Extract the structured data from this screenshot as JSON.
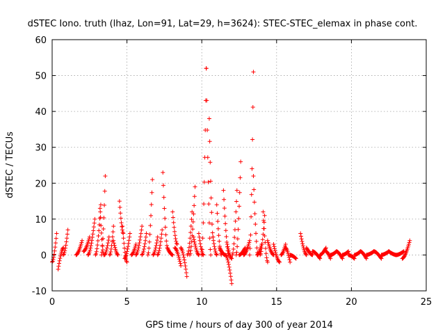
{
  "chart_data": {
    "type": "scatter",
    "title": "dSTEC Iono. truth (lhaz, Lon=91, Lat=29, h=3624): STEC-STEC_elemax in phase cont.",
    "xlabel": "GPS time / hours of day 300 of year 2014",
    "ylabel": "dSTEC  / TECUs",
    "xlim": [
      0,
      25
    ],
    "ylim": [
      -10,
      60
    ],
    "xticks": [
      0,
      5,
      10,
      15,
      20,
      25
    ],
    "yticks": [
      -10,
      0,
      10,
      20,
      30,
      40,
      50,
      60
    ],
    "xtick_labels": [
      "0",
      "5",
      "10",
      "15",
      "20",
      "25"
    ],
    "ytick_labels": [
      "-10",
      "0",
      "10",
      "20",
      "30",
      "40",
      "50",
      "60"
    ],
    "grid": true,
    "marker": "+",
    "marker_color": "#ff0000",
    "arc_sampling_hours": 0.033,
    "arcs": [
      {
        "t0": 0.0,
        "t1": 0.3,
        "y0": -2,
        "y1": 6
      },
      {
        "t0": 0.4,
        "t1": 0.75,
        "y0": -4,
        "y1": 2
      },
      {
        "t0": 0.75,
        "t1": 1.05,
        "y0": 0,
        "y1": 7
      },
      {
        "t0": 1.6,
        "t1": 2.0,
        "y0": 0,
        "y1": 4
      },
      {
        "t0": 2.1,
        "t1": 2.5,
        "y0": 1,
        "y1": 5
      },
      {
        "t0": 2.4,
        "t1": 2.85,
        "y0": 0,
        "y1": 10
      },
      {
        "t0": 2.9,
        "t1": 3.25,
        "y0": 0,
        "y1": 14
      },
      {
        "t0": 3.2,
        "t1": 3.45,
        "y0": 13,
        "y1": 0
      },
      {
        "t0": 3.3,
        "t1": 3.55,
        "y0": 0,
        "y1": 22
      },
      {
        "t0": 3.5,
        "t1": 3.8,
        "y0": 0,
        "y1": 5
      },
      {
        "t0": 3.85,
        "t1": 4.1,
        "y0": 0,
        "y1": 8
      },
      {
        "t0": 4.1,
        "t1": 4.4,
        "y0": 4,
        "y1": 0
      },
      {
        "t0": 4.5,
        "t1": 4.75,
        "y0": 15,
        "y1": 6
      },
      {
        "t0": 4.7,
        "t1": 5.0,
        "y0": 8,
        "y1": -2
      },
      {
        "t0": 4.85,
        "t1": 5.2,
        "y0": -1,
        "y1": 6
      },
      {
        "t0": 5.3,
        "t1": 5.6,
        "y0": 0,
        "y1": 3
      },
      {
        "t0": 5.6,
        "t1": 6.0,
        "y0": 0,
        "y1": 8
      },
      {
        "t0": 6.0,
        "t1": 6.3,
        "y0": 0,
        "y1": 6
      },
      {
        "t0": 6.4,
        "t1": 6.7,
        "y0": 0,
        "y1": 21
      },
      {
        "t0": 6.75,
        "t1": 7.05,
        "y0": 0,
        "y1": 5
      },
      {
        "t0": 7.05,
        "t1": 7.35,
        "y0": 0,
        "y1": 7
      },
      {
        "t0": 7.4,
        "t1": 7.7,
        "y0": 23,
        "y1": 2
      },
      {
        "t0": 7.7,
        "t1": 8.05,
        "y0": 2,
        "y1": 0
      },
      {
        "t0": 8.05,
        "t1": 8.35,
        "y0": 12,
        "y1": 3
      },
      {
        "t0": 8.2,
        "t1": 8.6,
        "y0": 2,
        "y1": -3
      },
      {
        "t0": 8.6,
        "t1": 9.0,
        "y0": 2,
        "y1": -6
      },
      {
        "t0": 9.05,
        "t1": 9.35,
        "y0": 0,
        "y1": 12
      },
      {
        "t0": 9.2,
        "t1": 9.55,
        "y0": 0,
        "y1": 19
      },
      {
        "t0": 9.45,
        "t1": 9.8,
        "y0": 5,
        "y1": 0
      },
      {
        "t0": 9.8,
        "t1": 10.1,
        "y0": 6,
        "y1": 0
      },
      {
        "t0": 10.0,
        "t1": 10.3,
        "y0": 0,
        "y1": 52
      },
      {
        "t0": 10.3,
        "t1": 10.6,
        "y0": 52,
        "y1": 0
      },
      {
        "t0": 10.5,
        "t1": 10.75,
        "y0": 38,
        "y1": 5
      },
      {
        "t0": 10.75,
        "t1": 11.0,
        "y0": 5,
        "y1": 0
      },
      {
        "t0": 11.0,
        "t1": 11.3,
        "y0": 14,
        "y1": 0
      },
      {
        "t0": 11.2,
        "t1": 11.55,
        "y0": 2,
        "y1": 0
      },
      {
        "t0": 11.45,
        "t1": 11.8,
        "y0": 18,
        "y1": 0
      },
      {
        "t0": 11.6,
        "t1": 12.0,
        "y0": 0,
        "y1": -8
      },
      {
        "t0": 11.7,
        "t1": 12.0,
        "y0": 3,
        "y1": -1
      },
      {
        "t0": 12.05,
        "t1": 12.35,
        "y0": 0,
        "y1": 18
      },
      {
        "t0": 12.3,
        "t1": 12.6,
        "y0": 0,
        "y1": 26
      },
      {
        "t0": 12.5,
        "t1": 12.9,
        "y0": 0,
        "y1": 2
      },
      {
        "t0": 12.8,
        "t1": 13.2,
        "y0": 0,
        "y1": 4
      },
      {
        "t0": 13.2,
        "t1": 13.45,
        "y0": 0,
        "y1": 51
      },
      {
        "t0": 13.45,
        "t1": 13.75,
        "y0": 22,
        "y1": 0
      },
      {
        "t0": 13.7,
        "t1": 14.0,
        "y0": 0,
        "y1": 3
      },
      {
        "t0": 13.9,
        "t1": 14.2,
        "y0": 0,
        "y1": 11
      },
      {
        "t0": 14.1,
        "t1": 14.4,
        "y0": 12,
        "y1": -2
      },
      {
        "t0": 14.4,
        "t1": 14.8,
        "y0": 4,
        "y1": 0
      },
      {
        "t0": 14.8,
        "t1": 15.2,
        "y0": 3,
        "y1": -2
      },
      {
        "t0": 15.3,
        "t1": 15.6,
        "y0": 0,
        "y1": 3
      },
      {
        "t0": 15.6,
        "t1": 15.9,
        "y0": 2,
        "y1": -2
      },
      {
        "t0": 15.9,
        "t1": 16.3,
        "y0": 0,
        "y1": -1
      },
      {
        "t0": 16.6,
        "t1": 17.0,
        "y0": 6,
        "y1": 0
      },
      {
        "t0": 17.0,
        "t1": 17.4,
        "y0": 2,
        "y1": 0
      },
      {
        "t0": 17.4,
        "t1": 17.9,
        "y0": 1,
        "y1": -1
      },
      {
        "t0": 17.9,
        "t1": 18.3,
        "y0": 0,
        "y1": 2
      },
      {
        "t0": 18.3,
        "t1": 18.6,
        "y0": 1,
        "y1": -1
      },
      {
        "t0": 18.6,
        "t1": 19.0,
        "y0": 0,
        "y1": 1
      },
      {
        "t0": 19.0,
        "t1": 19.4,
        "y0": 1,
        "y1": -1
      },
      {
        "t0": 19.4,
        "t1": 19.8,
        "y0": 0,
        "y1": 1
      },
      {
        "t0": 19.8,
        "t1": 20.2,
        "y0": 0,
        "y1": -1
      },
      {
        "t0": 20.2,
        "t1": 20.6,
        "y0": 0,
        "y1": 1
      },
      {
        "t0": 20.6,
        "t1": 21.0,
        "y0": 1,
        "y1": -1
      },
      {
        "t0": 21.0,
        "t1": 21.5,
        "y0": 0,
        "y1": 1
      },
      {
        "t0": 21.5,
        "t1": 22.0,
        "y0": 1,
        "y1": -1
      },
      {
        "t0": 22.0,
        "t1": 22.5,
        "y0": 0,
        "y1": 1
      },
      {
        "t0": 22.5,
        "t1": 23.0,
        "y0": 1,
        "y1": 0
      },
      {
        "t0": 23.0,
        "t1": 23.5,
        "y0": 0,
        "y1": 1
      },
      {
        "t0": 23.4,
        "t1": 23.9,
        "y0": -1,
        "y1": 4
      }
    ]
  }
}
